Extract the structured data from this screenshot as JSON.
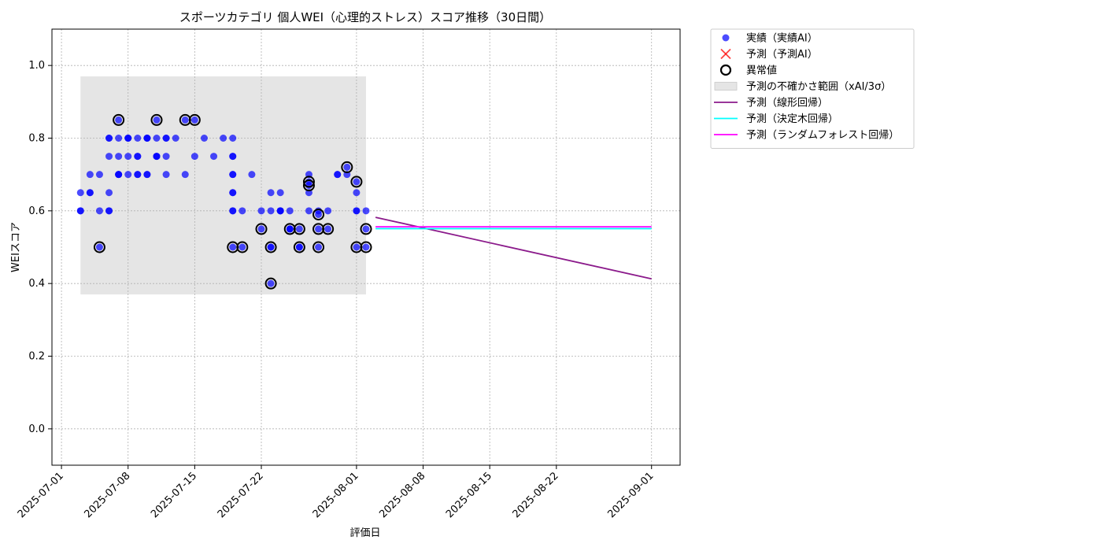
{
  "chart_data": {
    "type": "scatter",
    "title": "スポーツカテゴリ 個人WEI（心理的ストレス）スコア推移（30日間）",
    "xlabel": "評価日",
    "ylabel": "WEIスコア",
    "xlim": [
      "2025-06-30",
      "2025-09-04"
    ],
    "ylim": [
      -0.1,
      1.1
    ],
    "xticks": [
      "2025-07-01",
      "2025-07-08",
      "2025-07-15",
      "2025-07-22",
      "2025-08-01",
      "2025-08-08",
      "2025-08-15",
      "2025-08-22",
      "2025-09-01"
    ],
    "yticks": [
      0.0,
      0.2,
      0.4,
      0.6,
      0.8,
      1.0
    ],
    "ytick_labels": [
      "0.0",
      "0.2",
      "0.4",
      "0.6",
      "0.8",
      "1.0"
    ],
    "grid": true,
    "legend_position": "outside-upper-right",
    "uncertainty_band": {
      "name": "予測の不確かさ範囲（xAI/3σ）",
      "x_range": [
        "2025-07-03",
        "2025-08-02"
      ],
      "y_range": [
        0.37,
        0.97
      ],
      "color": "#d3d3d3"
    },
    "series": [
      {
        "name": "実績（実績AI）",
        "kind": "scatter",
        "color": "#0000ff",
        "points": [
          [
            "2025-07-03",
            0.6
          ],
          [
            "2025-07-03",
            0.6
          ],
          [
            "2025-07-03",
            0.65
          ],
          [
            "2025-07-04",
            0.65
          ],
          [
            "2025-07-04",
            0.65
          ],
          [
            "2025-07-04",
            0.7
          ],
          [
            "2025-07-05",
            0.7
          ],
          [
            "2025-07-05",
            0.6
          ],
          [
            "2025-07-05",
            0.5
          ],
          [
            "2025-07-06",
            0.6
          ],
          [
            "2025-07-06",
            0.6
          ],
          [
            "2025-07-06",
            0.65
          ],
          [
            "2025-07-06",
            0.75
          ],
          [
            "2025-07-06",
            0.8
          ],
          [
            "2025-07-06",
            0.8
          ],
          [
            "2025-07-07",
            0.85
          ],
          [
            "2025-07-07",
            0.7
          ],
          [
            "2025-07-07",
            0.8
          ],
          [
            "2025-07-07",
            0.7
          ],
          [
            "2025-07-07",
            0.75
          ],
          [
            "2025-07-07",
            0.7
          ],
          [
            "2025-07-08",
            0.7
          ],
          [
            "2025-07-08",
            0.8
          ],
          [
            "2025-07-08",
            0.8
          ],
          [
            "2025-07-08",
            0.8
          ],
          [
            "2025-07-08",
            0.75
          ],
          [
            "2025-07-09",
            0.7
          ],
          [
            "2025-07-09",
            0.7
          ],
          [
            "2025-07-09",
            0.75
          ],
          [
            "2025-07-09",
            0.8
          ],
          [
            "2025-07-09",
            0.75
          ],
          [
            "2025-07-10",
            0.8
          ],
          [
            "2025-07-10",
            0.8
          ],
          [
            "2025-07-10",
            0.8
          ],
          [
            "2025-07-10",
            0.7
          ],
          [
            "2025-07-10",
            0.7
          ],
          [
            "2025-07-11",
            0.75
          ],
          [
            "2025-07-11",
            0.8
          ],
          [
            "2025-07-11",
            0.75
          ],
          [
            "2025-07-11",
            0.85
          ],
          [
            "2025-07-11",
            0.75
          ],
          [
            "2025-07-12",
            0.75
          ],
          [
            "2025-07-12",
            0.8
          ],
          [
            "2025-07-12",
            0.8
          ],
          [
            "2025-07-12",
            0.7
          ],
          [
            "2025-07-13",
            0.8
          ],
          [
            "2025-07-14",
            0.85
          ],
          [
            "2025-07-14",
            0.7
          ],
          [
            "2025-07-15",
            0.85
          ],
          [
            "2025-07-15",
            0.75
          ],
          [
            "2025-07-16",
            0.8
          ],
          [
            "2025-07-17",
            0.75
          ],
          [
            "2025-07-18",
            0.8
          ],
          [
            "2025-07-19",
            0.7
          ],
          [
            "2025-07-19",
            0.7
          ],
          [
            "2025-07-19",
            0.65
          ],
          [
            "2025-07-19",
            0.6
          ],
          [
            "2025-07-19",
            0.8
          ],
          [
            "2025-07-19",
            0.75
          ],
          [
            "2025-07-19",
            0.75
          ],
          [
            "2025-07-19",
            0.6
          ],
          [
            "2025-07-19",
            0.5
          ],
          [
            "2025-07-19",
            0.65
          ],
          [
            "2025-07-20",
            0.5
          ],
          [
            "2025-07-20",
            0.6
          ],
          [
            "2025-07-21",
            0.7
          ],
          [
            "2025-07-22",
            0.55
          ],
          [
            "2025-07-22",
            0.6
          ],
          [
            "2025-07-23",
            0.5
          ],
          [
            "2025-07-23",
            0.5
          ],
          [
            "2025-07-23",
            0.4
          ],
          [
            "2025-07-23",
            0.6
          ],
          [
            "2025-07-23",
            0.65
          ],
          [
            "2025-07-24",
            0.65
          ],
          [
            "2025-07-24",
            0.6
          ],
          [
            "2025-07-24",
            0.6
          ],
          [
            "2025-07-24",
            0.6
          ],
          [
            "2025-07-25",
            0.55
          ],
          [
            "2025-07-25",
            0.55
          ],
          [
            "2025-07-25",
            0.6
          ],
          [
            "2025-07-25",
            0.55
          ],
          [
            "2025-07-26",
            0.5
          ],
          [
            "2025-07-26",
            0.5
          ],
          [
            "2025-07-26",
            0.55
          ],
          [
            "2025-07-27",
            0.6
          ],
          [
            "2025-07-27",
            0.67
          ],
          [
            "2025-07-27",
            0.68
          ],
          [
            "2025-07-27",
            0.7
          ],
          [
            "2025-07-27",
            0.65
          ],
          [
            "2025-07-28",
            0.55
          ],
          [
            "2025-07-28",
            0.5
          ],
          [
            "2025-07-28",
            0.59
          ],
          [
            "2025-07-28",
            0.6
          ],
          [
            "2025-07-29",
            0.55
          ],
          [
            "2025-07-29",
            0.6
          ],
          [
            "2025-07-30",
            0.7
          ],
          [
            "2025-07-30",
            0.7
          ],
          [
            "2025-07-31",
            0.72
          ],
          [
            "2025-07-31",
            0.7
          ],
          [
            "2025-08-01",
            0.5
          ],
          [
            "2025-08-01",
            0.6
          ],
          [
            "2025-08-01",
            0.65
          ],
          [
            "2025-08-01",
            0.6
          ],
          [
            "2025-08-01",
            0.68
          ],
          [
            "2025-08-02",
            0.55
          ],
          [
            "2025-08-02",
            0.5
          ],
          [
            "2025-08-02",
            0.6
          ]
        ]
      },
      {
        "name": "予測（予測AI）",
        "kind": "marker-x",
        "color": "#ff0000",
        "points": []
      },
      {
        "name": "異常値",
        "kind": "ring",
        "color": "#000000",
        "points": [
          [
            "2025-07-05",
            0.5
          ],
          [
            "2025-07-07",
            0.85
          ],
          [
            "2025-07-11",
            0.85
          ],
          [
            "2025-07-14",
            0.85
          ],
          [
            "2025-07-15",
            0.85
          ],
          [
            "2025-07-19",
            0.5
          ],
          [
            "2025-07-20",
            0.5
          ],
          [
            "2025-07-22",
            0.55
          ],
          [
            "2025-07-23",
            0.5
          ],
          [
            "2025-07-23",
            0.4
          ],
          [
            "2025-07-25",
            0.55
          ],
          [
            "2025-07-26",
            0.5
          ],
          [
            "2025-07-26",
            0.55
          ],
          [
            "2025-07-27",
            0.67
          ],
          [
            "2025-07-27",
            0.68
          ],
          [
            "2025-07-28",
            0.55
          ],
          [
            "2025-07-28",
            0.5
          ],
          [
            "2025-07-28",
            0.59
          ],
          [
            "2025-07-29",
            0.55
          ],
          [
            "2025-07-31",
            0.72
          ],
          [
            "2025-08-01",
            0.5
          ],
          [
            "2025-08-01",
            0.68
          ],
          [
            "2025-08-02",
            0.55
          ],
          [
            "2025-08-02",
            0.5
          ]
        ]
      },
      {
        "name": "予測（線形回帰）",
        "kind": "line",
        "color": "#8b1a8b",
        "points": [
          [
            "2025-08-03",
            0.582
          ],
          [
            "2025-09-01",
            0.413
          ]
        ]
      },
      {
        "name": "予測（決定木回帰）",
        "kind": "line",
        "color": "#00ffff",
        "points": [
          [
            "2025-08-03",
            0.551
          ],
          [
            "2025-09-01",
            0.551
          ]
        ]
      },
      {
        "name": "予測（ランダムフォレスト回帰）",
        "kind": "line",
        "color": "#ff00ff",
        "points": [
          [
            "2025-08-03",
            0.556
          ],
          [
            "2025-09-01",
            0.556
          ]
        ]
      }
    ]
  }
}
